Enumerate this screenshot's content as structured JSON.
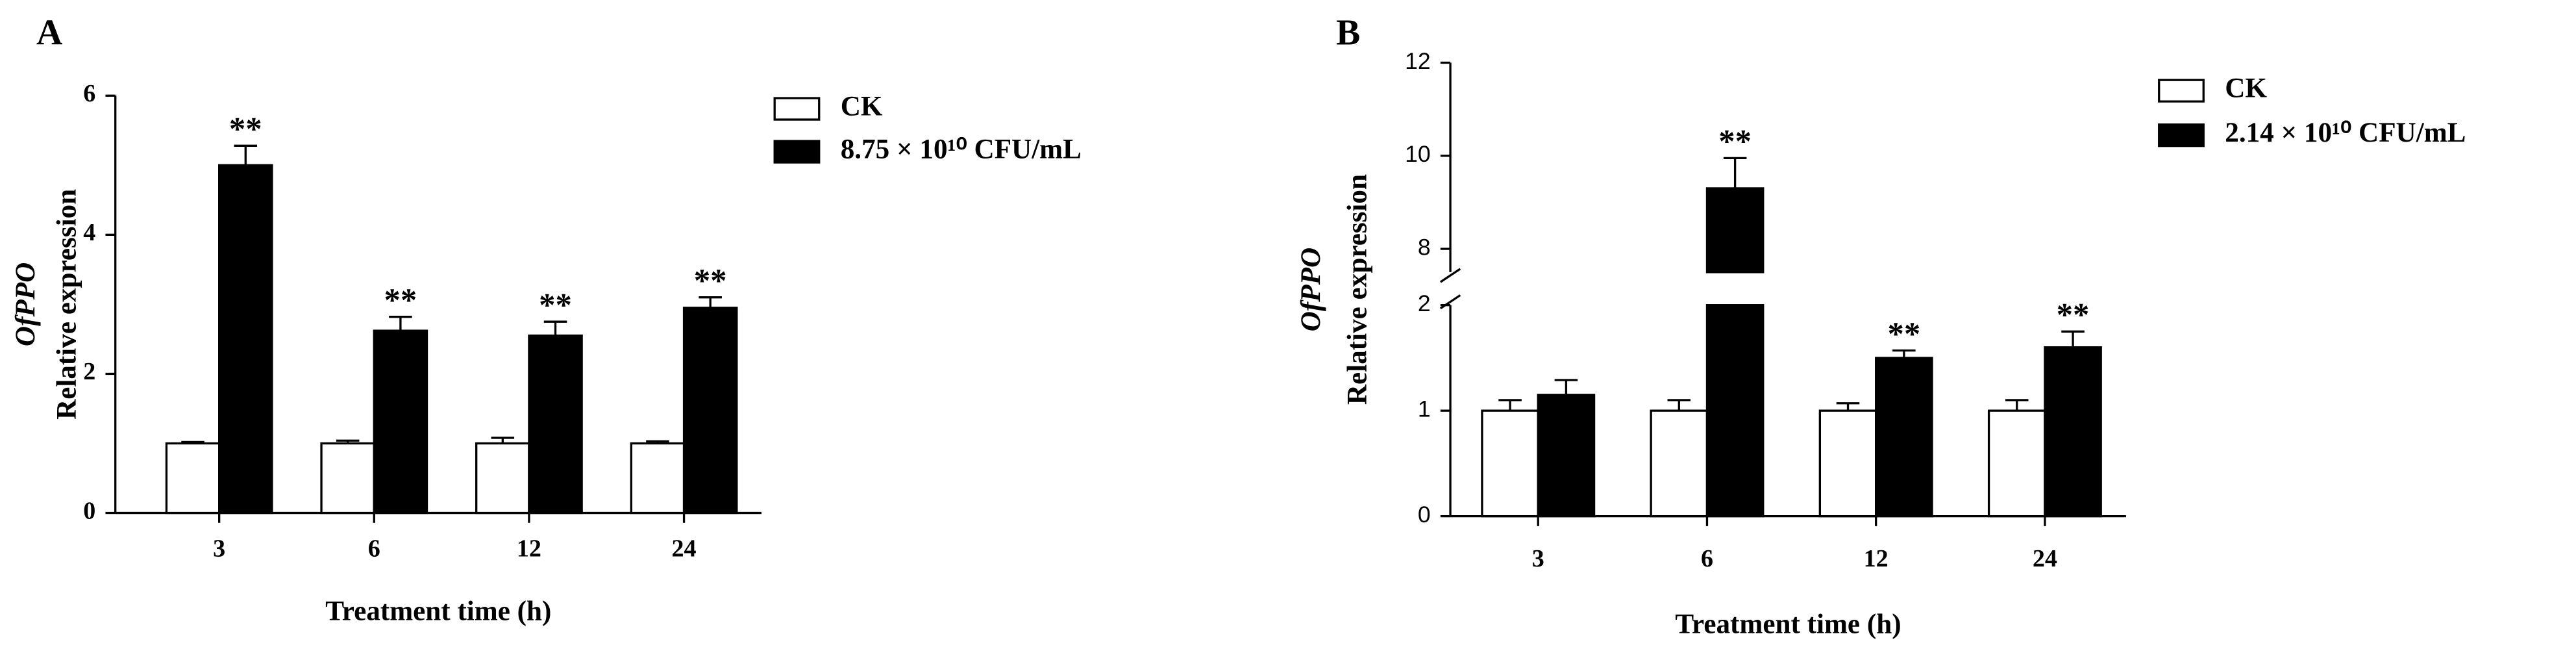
{
  "chart_data": [
    {
      "type": "bar",
      "panel": "A",
      "ylabel_gene": "OfPPO",
      "ylabel": "Relative expression",
      "xlabel": "Treatment time (h)",
      "categories": [
        "3",
        "6",
        "12",
        "24"
      ],
      "series": [
        {
          "name": "CK",
          "color": "#ffffff",
          "values": [
            1.0,
            1.0,
            1.0,
            1.0
          ],
          "errors": [
            0.02,
            0.04,
            0.08,
            0.03
          ]
        },
        {
          "name": "8.75 × 10¹⁰ CFU/mL",
          "color": "#000000",
          "values": [
            5.0,
            2.62,
            2.55,
            2.95
          ],
          "errors": [
            0.28,
            0.2,
            0.2,
            0.15
          ],
          "significance": [
            "**",
            "**",
            "**",
            "**"
          ]
        }
      ],
      "edgecolor": "#000000",
      "ylim": [
        0,
        6
      ],
      "yticks": [
        0,
        2,
        4,
        6
      ],
      "grid": false,
      "legend": "right"
    },
    {
      "type": "bar",
      "panel": "B",
      "ylabel_gene": "OfPPO",
      "ylabel": "Relative expression",
      "xlabel": "Treatment time (h)",
      "categories": [
        "3",
        "6",
        "12",
        "24"
      ],
      "series": [
        {
          "name": "CK",
          "color": "#ffffff",
          "values": [
            1.0,
            1.0,
            1.0,
            1.0
          ],
          "errors": [
            0.1,
            0.1,
            0.07,
            0.1
          ]
        },
        {
          "name": "2.14 × 10¹⁰ CFU/mL",
          "color": "#000000",
          "values": [
            1.15,
            9.3,
            1.5,
            1.6
          ],
          "errors": [
            0.14,
            0.65,
            0.07,
            0.15
          ],
          "significance": [
            null,
            "**",
            "**",
            "**"
          ]
        }
      ],
      "edgecolor": "#000000",
      "ylim": [
        0,
        12
      ],
      "ybreak": [
        2,
        7.5
      ],
      "yticks": [
        0,
        1,
        2,
        8,
        10,
        12
      ],
      "grid": false,
      "legend": "right"
    }
  ]
}
